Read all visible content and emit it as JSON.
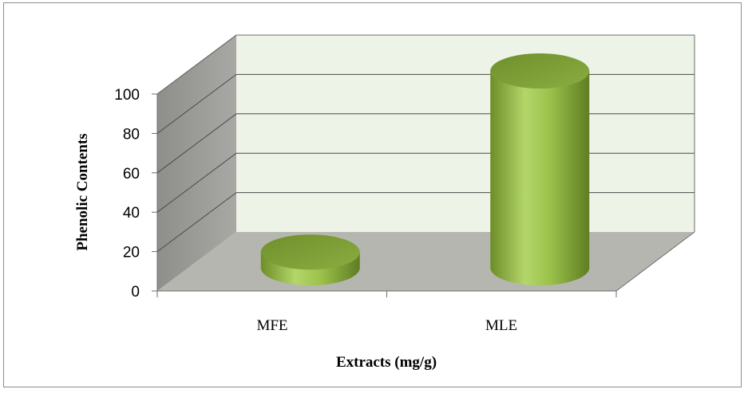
{
  "chart_data": {
    "type": "bar",
    "style": "3d-cylinder",
    "categories": [
      "MFE",
      "MLE"
    ],
    "values": [
      8,
      100
    ],
    "xlabel": "Extracts (mg/g)",
    "ylabel": "Phenolic Contents",
    "ylim": [
      0,
      100
    ],
    "yticks": [
      "0",
      "20",
      "40",
      "60",
      "80",
      "100"
    ],
    "grid": true,
    "legend": "none",
    "colors": {
      "bar_light": "#a6cc5a",
      "bar_mid": "#8cb33c",
      "bar_dark": "#5f7d22",
      "bar_top": "#7c9c37",
      "back_wall": "#eef3e8",
      "side_wall": "#9a9a96",
      "floor": "#b8b8b2",
      "gridline": "#3a3a3a"
    }
  }
}
